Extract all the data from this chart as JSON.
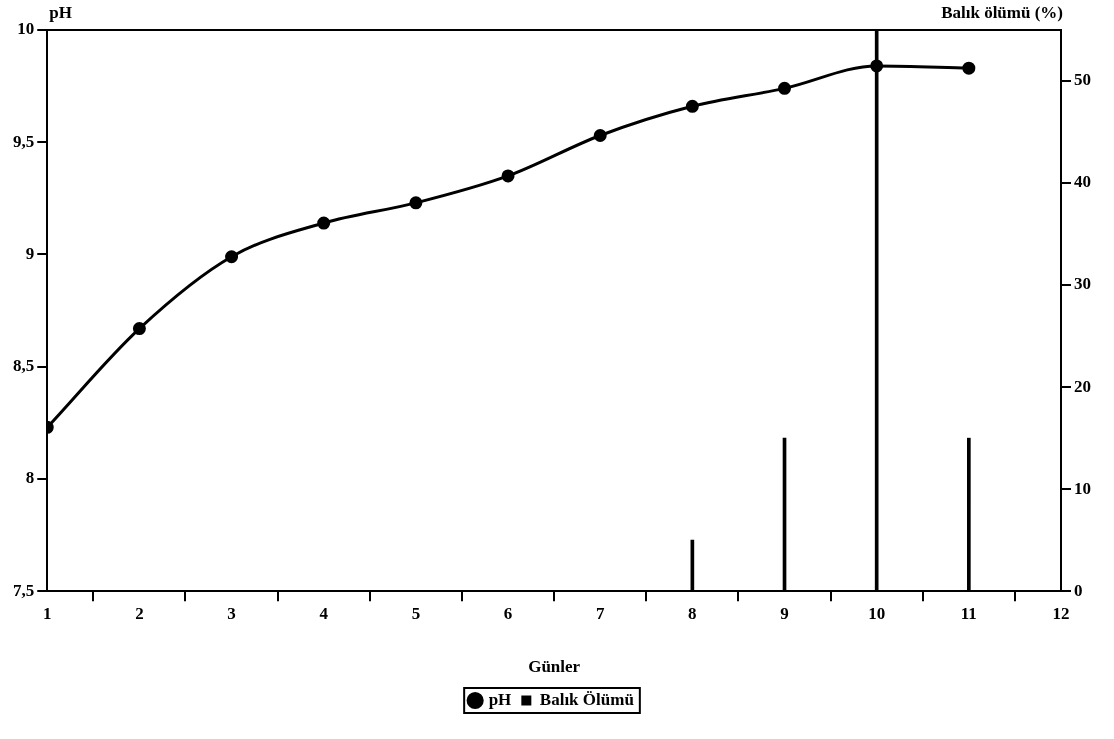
{
  "chart_data": {
    "type": "line",
    "xlabel": "Günler",
    "ylabel": "pH",
    "y2label": "Balık ölümü (%)",
    "x": [
      1,
      2,
      3,
      4,
      5,
      6,
      7,
      8,
      9,
      10,
      11
    ],
    "xlim": [
      1,
      12
    ],
    "xticks": [
      1,
      2,
      3,
      4,
      5,
      6,
      7,
      8,
      9,
      10,
      11,
      12
    ],
    "ylim": [
      7.5,
      10
    ],
    "yticks": [
      {
        "value": 7.5,
        "label": "7,5"
      },
      8,
      {
        "value": 8.5,
        "label": "8,5"
      },
      9,
      {
        "value": 9.5,
        "label": "9,5"
      },
      10
    ],
    "y2lim": [
      0,
      55
    ],
    "y2ticks": [
      0,
      10,
      20,
      30,
      40,
      50
    ],
    "grid": false,
    "legend": "bottom",
    "marker": "circle",
    "series": [
      {
        "name": "pH",
        "color": "#000000",
        "values": [
          8.23,
          8.67,
          8.99,
          9.14,
          9.23,
          9.35,
          9.53,
          9.66,
          9.74,
          9.84,
          9.83
        ]
      },
      {
        "name": "Balık Ölümü",
        "type": "bar",
        "axis": "y2",
        "color": "#000000",
        "values": [
          0,
          0,
          0,
          0,
          0,
          0,
          0,
          5,
          15,
          55,
          15
        ]
      }
    ]
  }
}
